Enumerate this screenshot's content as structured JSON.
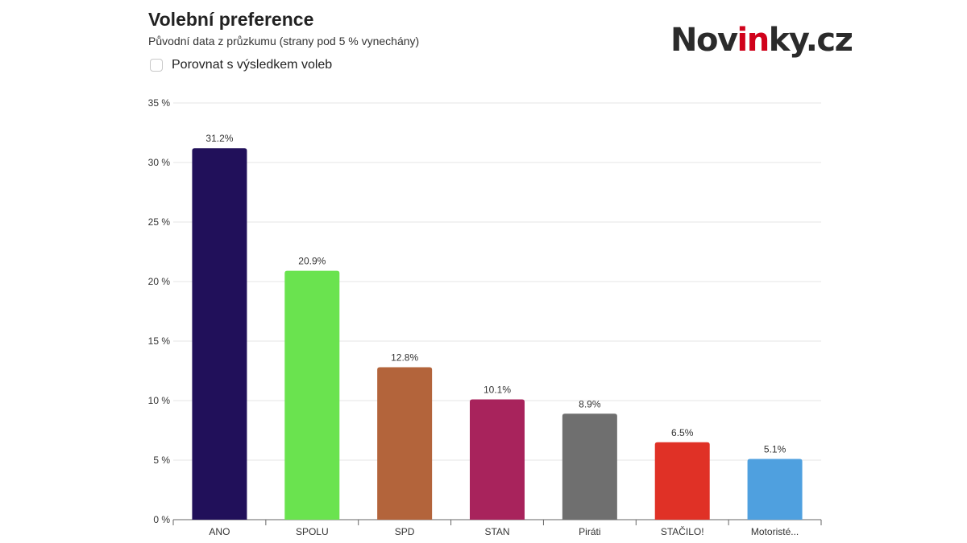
{
  "header": {
    "title": "Volební preference",
    "subtitle": "Původní data z průzkumu (strany pod 5 % vynechány)",
    "logo": {
      "part1": "Nov",
      "part2": "in",
      "part3": "ky.cz",
      "text_color": "#2b2b2b",
      "accent_color": "#d0021b"
    }
  },
  "controls": {
    "compare_checkbox": {
      "label": "Porovnat s výsledkem voleb",
      "checked": false
    }
  },
  "chart_data": {
    "type": "bar",
    "title": "Volební preference",
    "subtitle": "Původní data z průzkumu (strany pod 5 % vynechány)",
    "categories": [
      "ANO",
      "SPOLU",
      "SPD",
      "STAN",
      "Piráti",
      "STAČILO!",
      "Motoristé..."
    ],
    "values": [
      31.2,
      20.9,
      12.8,
      10.1,
      8.9,
      6.5,
      5.1
    ],
    "data_labels": [
      "31.2%",
      "20.9%",
      "12.8%",
      "10.1%",
      "8.9%",
      "6.5%",
      "5.1%"
    ],
    "colors": [
      "#21105a",
      "#6ae34f",
      "#b3643b",
      "#a8235c",
      "#6f6f6f",
      "#e03126",
      "#4fa0df"
    ],
    "ylim": [
      0,
      35
    ],
    "yticks": [
      0,
      5,
      10,
      15,
      20,
      25,
      30,
      35
    ],
    "ytick_labels": [
      "0 %",
      "5 %",
      "10 %",
      "15 %",
      "20 %",
      "25 %",
      "30 %",
      "35 %"
    ],
    "xlabel": "",
    "ylabel": "",
    "grid": true,
    "legend": "none"
  }
}
